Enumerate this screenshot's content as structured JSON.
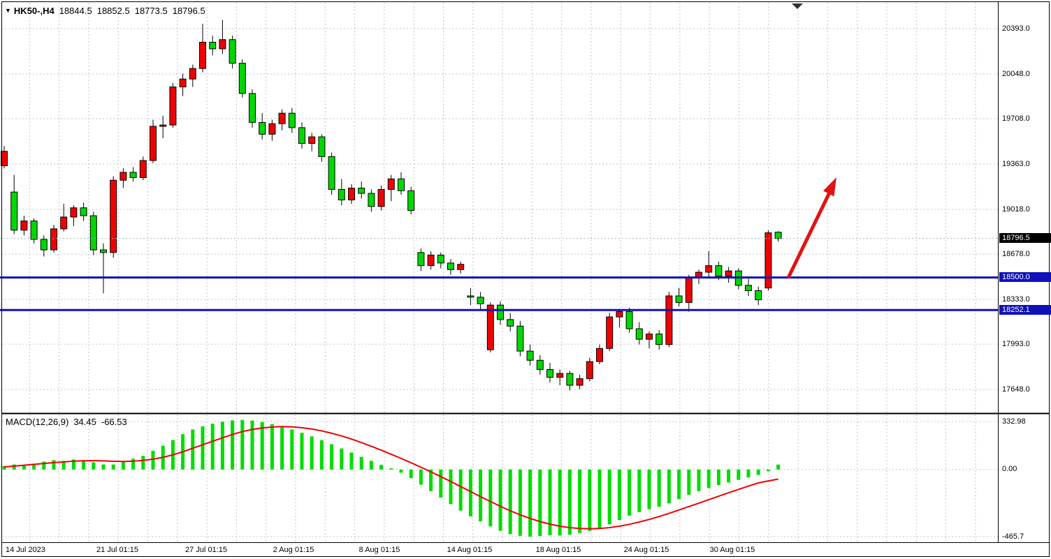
{
  "header": {
    "expander_icon": "▼",
    "symbol_period": "HK50-,H4",
    "open": "18844.5",
    "high": "18852.5",
    "low": "18773.5",
    "close": "18796.5"
  },
  "price_axis": {
    "labels": [
      {
        "text": "20393.0",
        "price": 20393.0,
        "style": "plain"
      },
      {
        "text": "20048.0",
        "price": 20048.0,
        "style": "plain"
      },
      {
        "text": "19708.0",
        "price": 19708.0,
        "style": "plain"
      },
      {
        "text": "19363.0",
        "price": 19363.0,
        "style": "plain"
      },
      {
        "text": "19018.0",
        "price": 19018.0,
        "style": "plain"
      },
      {
        "text": "18796.5",
        "price": 18796.5,
        "style": "current"
      },
      {
        "text": "18678.0",
        "price": 18678.0,
        "style": "plain"
      },
      {
        "text": "18500.0",
        "price": 18500.0,
        "style": "level"
      },
      {
        "text": "18333.0",
        "price": 18333.0,
        "style": "plain"
      },
      {
        "text": "18252.1",
        "price": 18252.1,
        "style": "level"
      },
      {
        "text": "17993.0",
        "price": 17993.0,
        "style": "plain"
      },
      {
        "text": "17648.0",
        "price": 17648.0,
        "style": "plain"
      }
    ]
  },
  "time_axis": {
    "labels": [
      {
        "text": "14 Jul 2023",
        "x": 8,
        "align": "left"
      },
      {
        "text": "21 Jul 01:15",
        "x": 168,
        "align": "center"
      },
      {
        "text": "27 Jul 01:15",
        "x": 295,
        "align": "center"
      },
      {
        "text": "2 Aug 01:15",
        "x": 420,
        "align": "center"
      },
      {
        "text": "8 Aug 01:15",
        "x": 543,
        "align": "center"
      },
      {
        "text": "14 Aug 01:15",
        "x": 672,
        "align": "center"
      },
      {
        "text": "18 Aug 01:15",
        "x": 799,
        "align": "center"
      },
      {
        "text": "24 Aug 01:15",
        "x": 925,
        "align": "center"
      },
      {
        "text": "30 Aug 01:15",
        "x": 1048,
        "align": "center"
      }
    ]
  },
  "macd_panel": {
    "label": "MACD(12,26,9)",
    "value_main": "34.45",
    "value_signal": "-66.53",
    "axis_labels": [
      {
        "text": "332.98",
        "value": 332.98
      },
      {
        "text": "0.00",
        "value": 0
      },
      {
        "text": "-465.7",
        "value": -465.7
      }
    ]
  },
  "chart_data": {
    "type": "candlestick",
    "symbol": "HK50-",
    "timeframe": "H4",
    "last_ohlc": {
      "open": 18844.5,
      "high": 18852.5,
      "low": 18773.5,
      "close": 18796.5
    },
    "ylim": [
      17480,
      20590
    ],
    "price_grid_levels": [
      20393.0,
      20048.0,
      19708.0,
      19363.0,
      19018.0,
      18678.0,
      18333.0,
      17993.0,
      17648.0
    ],
    "current_price": 18796.5,
    "horizontal_levels": [
      18500.0,
      18252.1
    ],
    "time_ticks": [
      "14 Jul 2023",
      "21 Jul 01:15",
      "27 Jul 01:15",
      "2 Aug 01:15",
      "8 Aug 01:15",
      "14 Aug 01:15",
      "18 Aug 01:15",
      "24 Aug 01:15",
      "30 Aug 01:15"
    ],
    "up_color_note": "red bodies are bullish, green bodies are bearish",
    "candles": [
      [
        19350,
        19500,
        19330,
        19460
      ],
      [
        19150,
        19280,
        18830,
        18860
      ],
      [
        18860,
        18970,
        18820,
        18930
      ],
      [
        18930,
        18950,
        18760,
        18790
      ],
      [
        18790,
        18820,
        18660,
        18710
      ],
      [
        18710,
        18900,
        18690,
        18870
      ],
      [
        18870,
        19060,
        18850,
        18960
      ],
      [
        18960,
        19050,
        18890,
        19030
      ],
      [
        19030,
        19070,
        18930,
        18970
      ],
      [
        18970,
        19000,
        18670,
        18710
      ],
      [
        18710,
        18760,
        18380,
        18690
      ],
      [
        18690,
        19270,
        18650,
        19240
      ],
      [
        19240,
        19330,
        19180,
        19300
      ],
      [
        19300,
        19340,
        19230,
        19260
      ],
      [
        19260,
        19420,
        19240,
        19390
      ],
      [
        19390,
        19700,
        19370,
        19650
      ],
      [
        19650,
        19730,
        19560,
        19660
      ],
      [
        19660,
        19980,
        19640,
        19950
      ],
      [
        19950,
        20050,
        19880,
        20010
      ],
      [
        20010,
        20120,
        19950,
        20090
      ],
      [
        20090,
        20430,
        20060,
        20290
      ],
      [
        20290,
        20340,
        20190,
        20240
      ],
      [
        20240,
        20460,
        20200,
        20310
      ],
      [
        20310,
        20340,
        20090,
        20130
      ],
      [
        20130,
        20160,
        19870,
        19900
      ],
      [
        19900,
        19930,
        19640,
        19680
      ],
      [
        19680,
        19750,
        19550,
        19590
      ],
      [
        19590,
        19700,
        19540,
        19670
      ],
      [
        19670,
        19780,
        19620,
        19750
      ],
      [
        19750,
        19790,
        19600,
        19640
      ],
      [
        19640,
        19680,
        19480,
        19520
      ],
      [
        19520,
        19600,
        19460,
        19570
      ],
      [
        19570,
        19590,
        19380,
        19420
      ],
      [
        19420,
        19450,
        19130,
        19170
      ],
      [
        19170,
        19250,
        19050,
        19090
      ],
      [
        19090,
        19210,
        19060,
        19180
      ],
      [
        19180,
        19230,
        19100,
        19140
      ],
      [
        19140,
        19170,
        19000,
        19040
      ],
      [
        19040,
        19200,
        19010,
        19170
      ],
      [
        19170,
        19280,
        19080,
        19250
      ],
      [
        19250,
        19300,
        19130,
        19160
      ],
      [
        19160,
        19190,
        18980,
        19010
      ],
      [
        18690,
        18720,
        18550,
        18590
      ],
      [
        18590,
        18700,
        18560,
        18670
      ],
      [
        18670,
        18690,
        18570,
        18610
      ],
      [
        18610,
        18640,
        18520,
        18560
      ],
      [
        18560,
        18620,
        18530,
        18600
      ],
      [
        18360,
        18420,
        18290,
        18350
      ],
      [
        18350,
        18390,
        18250,
        18300
      ],
      [
        17950,
        18310,
        17930,
        18290
      ],
      [
        18290,
        18320,
        18140,
        18180
      ],
      [
        18180,
        18230,
        18090,
        18130
      ],
      [
        18130,
        18170,
        17900,
        17940
      ],
      [
        17940,
        17990,
        17830,
        17870
      ],
      [
        17870,
        17910,
        17760,
        17800
      ],
      [
        17800,
        17850,
        17700,
        17740
      ],
      [
        17740,
        17800,
        17680,
        17770
      ],
      [
        17770,
        17790,
        17640,
        17680
      ],
      [
        17680,
        17760,
        17650,
        17730
      ],
      [
        17730,
        17890,
        17710,
        17860
      ],
      [
        17860,
        17990,
        17840,
        17960
      ],
      [
        17960,
        18230,
        17940,
        18200
      ],
      [
        18200,
        18260,
        18120,
        18240
      ],
      [
        18240,
        18270,
        18080,
        18110
      ],
      [
        18110,
        18160,
        17990,
        18030
      ],
      [
        18030,
        18090,
        17960,
        18070
      ],
      [
        18070,
        18100,
        17950,
        17990
      ],
      [
        17990,
        18390,
        17970,
        18360
      ],
      [
        18360,
        18420,
        18280,
        18310
      ],
      [
        18310,
        18520,
        18240,
        18500
      ],
      [
        18500,
        18560,
        18450,
        18540
      ],
      [
        18540,
        18700,
        18500,
        18590
      ],
      [
        18590,
        18620,
        18480,
        18510
      ],
      [
        18510,
        18580,
        18460,
        18550
      ],
      [
        18550,
        18570,
        18410,
        18440
      ],
      [
        18440,
        18490,
        18360,
        18400
      ],
      [
        18400,
        18430,
        18290,
        18330
      ],
      [
        18420,
        18860,
        18400,
        18840
      ],
      [
        18844.5,
        18852.5,
        18773.5,
        18796.5
      ]
    ],
    "macd": {
      "params": [
        12,
        26,
        9
      ],
      "main_last": 34.45,
      "signal_last": -66.53,
      "ylim": [
        -494,
        386
      ],
      "axis_ticks": [
        332.98,
        0.0,
        -465.7
      ],
      "histogram": [
        25,
        35,
        30,
        40,
        55,
        65,
        60,
        70,
        65,
        50,
        35,
        35,
        55,
        75,
        95,
        130,
        165,
        205,
        245,
        278,
        300,
        318,
        332,
        341,
        344,
        340,
        330,
        315,
        298,
        278,
        255,
        230,
        203,
        175,
        146,
        118,
        88,
        60,
        33,
        8,
        -22,
        -60,
        -105,
        -150,
        -195,
        -240,
        -285,
        -325,
        -360,
        -395,
        -425,
        -448,
        -460,
        -466,
        -461,
        -456,
        -458,
        -452,
        -440,
        -425,
        -405,
        -380,
        -350,
        -320,
        -295,
        -275,
        -258,
        -235,
        -205,
        -175,
        -150,
        -128,
        -108,
        -90,
        -72,
        -55,
        -38,
        -12,
        34.45
      ],
      "signal": [
        18,
        24,
        30,
        36,
        42,
        48,
        53,
        58,
        61,
        62,
        60,
        57,
        56,
        58,
        63,
        72,
        85,
        102,
        123,
        148,
        172,
        196,
        220,
        243,
        263,
        278,
        288,
        295,
        298,
        296,
        290,
        281,
        268,
        252,
        233,
        211,
        187,
        161,
        134,
        106,
        77,
        47,
        16,
        -16,
        -49,
        -83,
        -118,
        -153,
        -188,
        -222,
        -255,
        -286,
        -314,
        -339,
        -361,
        -379,
        -393,
        -403,
        -409,
        -411,
        -409,
        -403,
        -393,
        -380,
        -364,
        -346,
        -326,
        -304,
        -281,
        -257,
        -233,
        -209,
        -185,
        -161,
        -138,
        -115,
        -93,
        -79,
        -66.53
      ]
    },
    "annotations": [
      {
        "type": "arrow",
        "direction": "up-right",
        "color": "#e01414",
        "x1": 1128,
        "y1": 398,
        "x2": 1197,
        "y2": 254
      }
    ],
    "colors": {
      "bull": "#f00000",
      "bear": "#00d800",
      "wick": "#000000",
      "grid": "#c4c4c4",
      "level_line": "#1111bb",
      "level_tag_bg": "#1111bb",
      "current_tag_bg": "#000000",
      "histogram": "#00dd00",
      "signal_line": "#f00000",
      "current_price_line": "#9eb6b6",
      "arrow": "#e01414"
    }
  }
}
